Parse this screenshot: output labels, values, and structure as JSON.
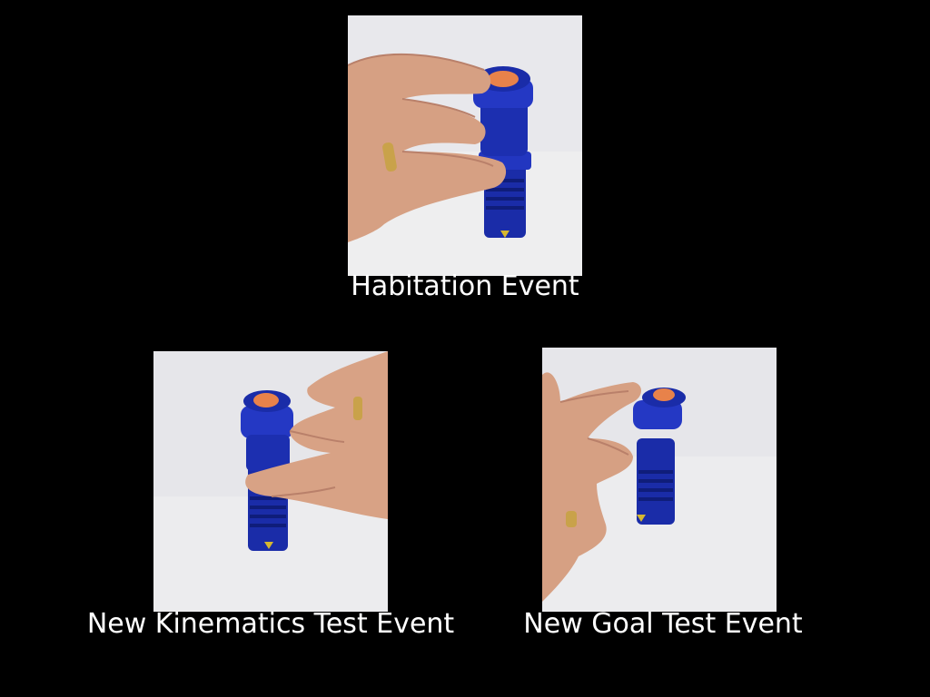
{
  "slide": {
    "background": "#000000",
    "panels": [
      {
        "caption": "Habitation Event"
      },
      {
        "caption": "New Kinematics Test Event"
      },
      {
        "caption": "New Goal Test Event"
      }
    ]
  },
  "colors": {
    "flashlight": "#1c2fb0",
    "lens": "#e8824a",
    "skin": "#d8a285",
    "backdrop": "#e9e9ec"
  }
}
